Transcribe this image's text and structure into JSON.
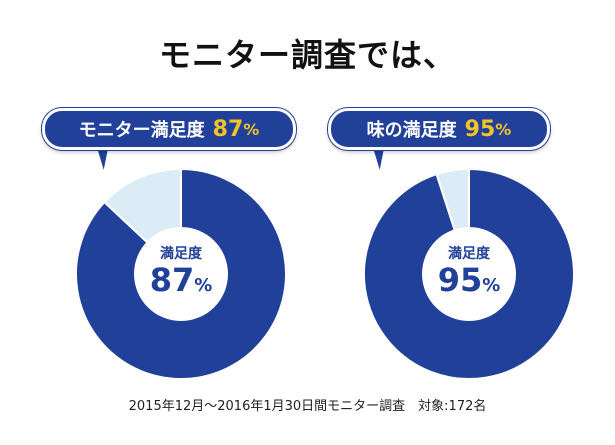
{
  "title": "モニター調査では、",
  "footnote": "2015年12月～2016年1月30日間モニター調査　対象:172名",
  "colors": {
    "primary": "#20409a",
    "remainder": "#dcecf7",
    "accent": "#f5c323",
    "text": "#111111"
  },
  "chart_data": [
    {
      "type": "pie",
      "label": "モニター満足度",
      "center_caption": "満足度",
      "value": 87,
      "unit": "%",
      "slices": [
        {
          "value": 87
        },
        {
          "value": 13
        }
      ]
    },
    {
      "type": "pie",
      "label": "味の満足度",
      "center_caption": "満足度",
      "value": 95,
      "unit": "%",
      "slices": [
        {
          "value": 95
        },
        {
          "value": 5
        }
      ]
    }
  ]
}
